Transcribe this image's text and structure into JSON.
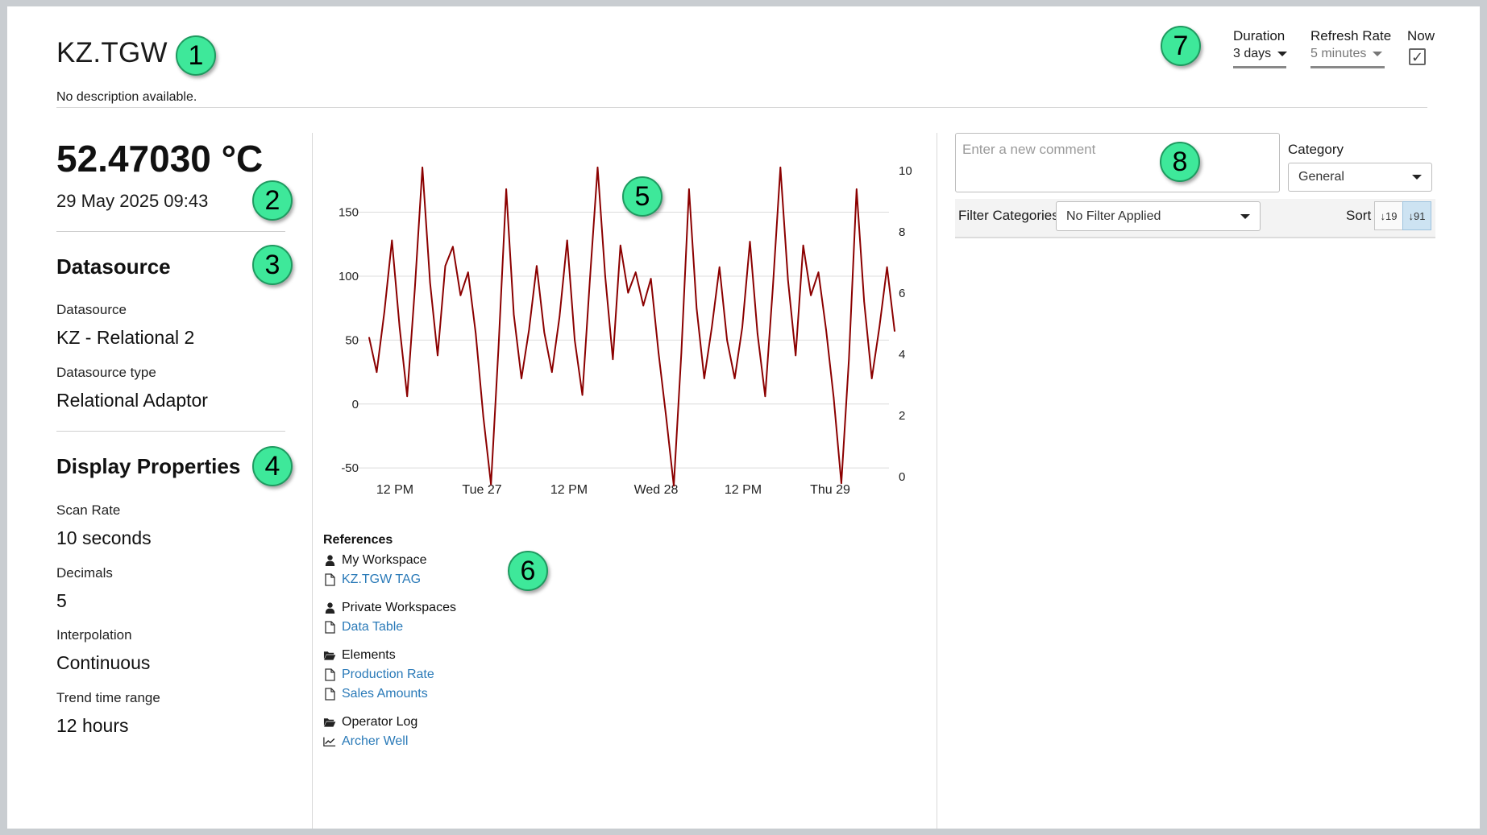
{
  "header": {
    "title": "KZ.TGW",
    "description": "No description available."
  },
  "controls": {
    "duration": {
      "label": "Duration",
      "value": "3 days"
    },
    "refresh": {
      "label": "Refresh Rate",
      "value": "5 minutes"
    },
    "now": {
      "label": "Now",
      "checked": true,
      "check_glyph": "✓"
    }
  },
  "current": {
    "value": "52.47030 °C",
    "timestamp": "29 May 2025 09:43"
  },
  "datasource": {
    "heading": "Datasource",
    "props": [
      {
        "label": "Datasource",
        "value": "KZ - Relational 2"
      },
      {
        "label": "Datasource type",
        "value": "Relational Adaptor"
      }
    ]
  },
  "display_properties": {
    "heading": "Display Properties",
    "props": [
      {
        "label": "Scan Rate",
        "value": "10 seconds"
      },
      {
        "label": "Decimals",
        "value": "5"
      },
      {
        "label": "Interpolation",
        "value": "Continuous"
      },
      {
        "label": "Trend time range",
        "value": "12 hours"
      }
    ]
  },
  "chart_data": {
    "type": "line",
    "line_color": "#8b0000",
    "x_ticks": [
      "12 PM",
      "Tue 27",
      "12 PM",
      "Wed 28",
      "12 PM",
      "Thu 29"
    ],
    "left_axis": {
      "ticks": [
        150,
        100,
        50,
        0,
        -50
      ],
      "ylim": [
        -65,
        190
      ]
    },
    "right_axis": {
      "ticks": [
        10,
        8,
        6,
        4,
        2,
        0
      ],
      "ylim": [
        0,
        10
      ]
    },
    "grid": true,
    "series": [
      {
        "values": [
          52,
          25,
          72,
          128,
          60,
          6,
          90,
          185,
          95,
          38,
          108,
          123,
          85,
          103,
          55,
          -10,
          -63,
          45,
          168,
          70,
          20,
          58,
          108,
          56,
          25,
          68,
          128,
          50,
          7,
          98,
          185,
          100,
          35,
          124,
          87,
          103,
          77,
          98,
          40,
          -10,
          -64,
          40,
          168,
          75,
          20,
          60,
          107,
          50,
          20,
          60,
          127,
          55,
          6,
          90,
          185,
          97,
          38,
          124,
          85,
          103,
          58,
          5,
          -62,
          35,
          168,
          80,
          20,
          60,
          107,
          57
        ]
      }
    ]
  },
  "references": {
    "heading": "References",
    "groups": [
      {
        "title": "My Workspace",
        "icon": "user-icon",
        "items": [
          {
            "label": "KZ.TGW TAG",
            "icon": "document-icon"
          }
        ]
      },
      {
        "title": "Private Workspaces",
        "icon": "user-icon",
        "items": [
          {
            "label": "Data Table",
            "icon": "document-icon"
          }
        ]
      },
      {
        "title": "Elements",
        "icon": "folder-open-icon",
        "items": [
          {
            "label": "Production Rate",
            "icon": "document-icon"
          },
          {
            "label": "Sales Amounts",
            "icon": "document-icon"
          }
        ]
      },
      {
        "title": "Operator Log",
        "icon": "folder-open-icon",
        "items": [
          {
            "label": "Archer Well",
            "icon": "trend-chart-icon"
          }
        ]
      }
    ]
  },
  "comments": {
    "placeholder": "Enter a new comment",
    "category_label": "Category",
    "category_value": "General",
    "filter_label": "Filter Categories",
    "filter_value": "No Filter Applied",
    "sort_label": "Sort",
    "sort_asc_glyph": "↓19",
    "sort_desc_glyph": "↓91"
  },
  "markers": [
    "1",
    "2",
    "3",
    "4",
    "5",
    "6",
    "7",
    "8"
  ]
}
